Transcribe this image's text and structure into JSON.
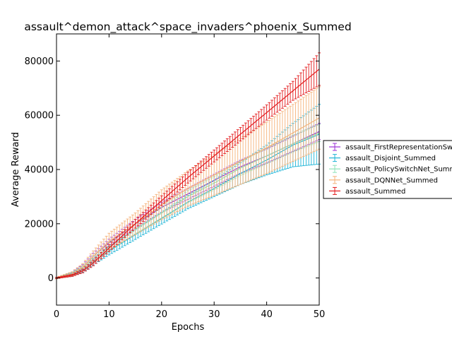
{
  "chart_data": {
    "type": "line",
    "title": "assault^demon_attack^space_invaders^phoenix_Summed",
    "xlabel": "Epochs",
    "ylabel": "Average Reward",
    "xlim": [
      0,
      50
    ],
    "ylim": [
      -10000,
      90000
    ],
    "xticks": [
      "0",
      "10",
      "20",
      "30",
      "40",
      "50"
    ],
    "yticks": [
      "0",
      "20000",
      "40000",
      "60000",
      "80000"
    ],
    "grid": false,
    "legend_position": "right, outside plot",
    "series": [
      {
        "name": "assault_FirstRepresentationSwitchNet_Summed",
        "color": "#9b30d6",
        "anchor_x": [
          0,
          3,
          5,
          7,
          10,
          15,
          20,
          25,
          30,
          35,
          40,
          45,
          50
        ],
        "anchor_y": [
          0,
          1500,
          4000,
          8000,
          13000,
          20000,
          26000,
          31000,
          36000,
          41000,
          45000,
          49500,
          54000
        ],
        "anchor_err": [
          200,
          600,
          900,
          1100,
          1300,
          1600,
          1800,
          2000,
          2200,
          2400,
          2600,
          2800,
          3000
        ]
      },
      {
        "name": "assault_Disjoint_Summed",
        "color": "#1fb4d6",
        "anchor_x": [
          0,
          3,
          5,
          7,
          10,
          15,
          20,
          25,
          30,
          35,
          40,
          45,
          50
        ],
        "anchor_y": [
          0,
          1200,
          3000,
          6000,
          10000,
          16000,
          22000,
          28000,
          33000,
          38500,
          43500,
          49000,
          53000
        ],
        "anchor_err": [
          200,
          600,
          900,
          1200,
          1500,
          1800,
          2100,
          2500,
          3000,
          4000,
          5500,
          8000,
          11000
        ]
      },
      {
        "name": "assault_PolicySwitchNet_Summed",
        "color": "#8ee3b8",
        "anchor_x": [
          0,
          3,
          5,
          7,
          10,
          15,
          20,
          25,
          30,
          35,
          40,
          45,
          50
        ],
        "anchor_y": [
          0,
          1400,
          3600,
          7000,
          11500,
          18000,
          24000,
          30000,
          35000,
          40500,
          45000,
          49500,
          53500
        ],
        "anchor_err": [
          200,
          600,
          900,
          1200,
          1500,
          1800,
          2000,
          2200,
          2400,
          2600,
          2800,
          3000,
          3200
        ]
      },
      {
        "name": "assault_DQNNet_Summed",
        "color": "#f5b27a",
        "anchor_x": [
          0,
          3,
          5,
          7,
          10,
          15,
          20,
          25,
          30,
          35,
          40,
          45,
          50
        ],
        "anchor_y": [
          0,
          1500,
          4000,
          8000,
          13500,
          20000,
          27000,
          33000,
          38000,
          43000,
          48000,
          53500,
          59000
        ],
        "anchor_err": [
          300,
          800,
          1300,
          2000,
          3000,
          4000,
          5500,
          6500,
          7500,
          8500,
          9500,
          10500,
          11500
        ]
      },
      {
        "name": "assault_Summed",
        "color": "#e31a1c",
        "anchor_x": [
          0,
          3,
          5,
          7,
          10,
          15,
          20,
          25,
          30,
          35,
          40,
          45,
          50
        ],
        "anchor_y": [
          0,
          1000,
          2600,
          5500,
          11000,
          20000,
          28500,
          37000,
          45000,
          53000,
          61000,
          69000,
          77000
        ],
        "anchor_err": [
          200,
          400,
          700,
          1000,
          1300,
          1600,
          1800,
          2000,
          2200,
          2500,
          2800,
          3500,
          6000
        ]
      }
    ]
  }
}
